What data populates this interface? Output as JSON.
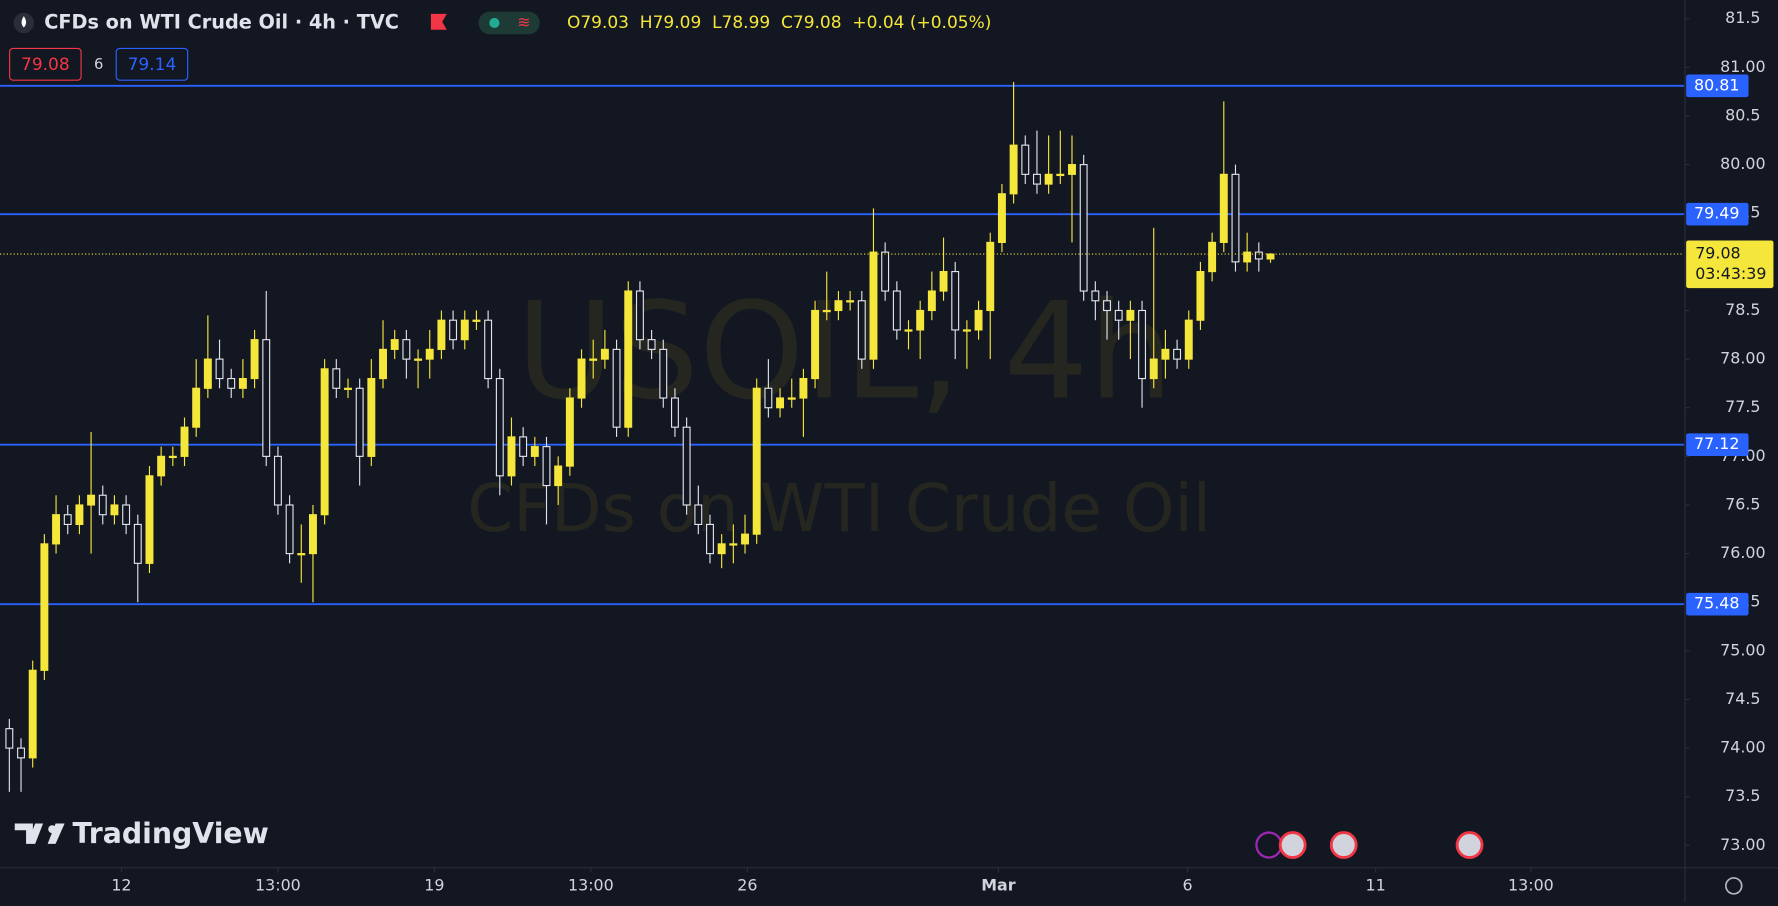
{
  "header": {
    "title": "CFDs on WTI Crude Oil · 4h · TVC",
    "ohlc_text": "O79.03  H79.09  L78.99  C79.08  +0.04 (+0.05%)",
    "sell": "79.08",
    "spread": "6",
    "buy": "79.14",
    "watermark_symbol": "USOIL, 4h",
    "watermark_name": "CFDs on WTI Crude Oil",
    "logo": "TradingView"
  },
  "chart_data": {
    "type": "candlestick",
    "up_color": "#f5e63b",
    "down_color": "#e0e3eb",
    "line_color": "#2962ff",
    "x": [
      0,
      1,
      2,
      3,
      4,
      5,
      6,
      7,
      8,
      9,
      10,
      11,
      12,
      13,
      14,
      15,
      16,
      17,
      18,
      19,
      20,
      21,
      22,
      23,
      24,
      25,
      26,
      27,
      28,
      29,
      30,
      31,
      32,
      33,
      34,
      35,
      36,
      37,
      38,
      39,
      40,
      41,
      42,
      43,
      44,
      45,
      46,
      47,
      48,
      49,
      50,
      51,
      52,
      53,
      54,
      55,
      56,
      57,
      58,
      59,
      60,
      61,
      62,
      63,
      64,
      65,
      66,
      67,
      68,
      69,
      70,
      71,
      72,
      73,
      74,
      75,
      76,
      77,
      78,
      79,
      80,
      81,
      82,
      83,
      84,
      85,
      86,
      87,
      88,
      89,
      90,
      91,
      92,
      93,
      94,
      95,
      96,
      97,
      98,
      99,
      100,
      101,
      102,
      103,
      104,
      105,
      106,
      107,
      108
    ],
    "open": [
      74.2,
      74.0,
      73.9,
      74.8,
      76.1,
      76.4,
      76.3,
      76.5,
      76.6,
      76.4,
      76.5,
      76.3,
      75.9,
      76.8,
      77.0,
      77.0,
      77.3,
      77.7,
      78.0,
      77.8,
      77.7,
      77.8,
      78.2,
      77.0,
      76.5,
      76.0,
      76.0,
      76.4,
      77.9,
      77.7,
      77.7,
      77.0,
      77.8,
      78.1,
      78.2,
      78.0,
      78.0,
      78.1,
      78.4,
      78.2,
      78.4,
      78.4,
      77.8,
      76.8,
      77.2,
      77.0,
      77.1,
      76.7,
      76.9,
      77.6,
      78.0,
      78.0,
      78.1,
      77.3,
      78.7,
      78.2,
      78.1,
      77.6,
      77.3,
      76.5,
      76.3,
      76.0,
      76.1,
      76.1,
      76.2,
      77.7,
      77.5,
      77.6,
      77.6,
      77.8,
      78.5,
      78.5,
      78.6,
      78.6,
      78.0,
      79.1,
      78.7,
      78.3,
      78.3,
      78.5,
      78.7,
      78.9,
      78.3,
      78.3,
      78.5,
      79.2,
      79.7,
      80.2,
      79.9,
      79.8,
      79.9,
      79.9,
      80.0,
      78.7,
      78.6,
      78.5,
      78.4,
      78.5,
      77.8,
      78.0,
      78.1,
      78.0,
      78.4,
      78.9,
      79.2,
      79.9,
      79.0,
      79.1,
      79.03
    ],
    "high": [
      74.3,
      74.1,
      74.9,
      76.2,
      76.6,
      76.5,
      76.6,
      77.25,
      76.7,
      76.6,
      76.6,
      76.4,
      76.9,
      77.1,
      77.1,
      77.4,
      78.0,
      78.45,
      78.2,
      77.9,
      78.0,
      78.3,
      78.7,
      77.1,
      76.6,
      76.3,
      76.5,
      78.0,
      78.0,
      77.8,
      77.8,
      78.0,
      78.4,
      78.3,
      78.3,
      78.1,
      78.3,
      78.5,
      78.5,
      78.5,
      78.5,
      78.5,
      77.9,
      77.4,
      77.3,
      77.2,
      77.2,
      77.0,
      77.7,
      78.1,
      78.2,
      78.3,
      78.2,
      78.8,
      78.8,
      78.3,
      78.2,
      77.7,
      77.4,
      76.7,
      76.4,
      76.2,
      76.3,
      76.4,
      77.8,
      78.0,
      77.7,
      77.8,
      77.9,
      78.6,
      78.9,
      78.7,
      78.7,
      78.7,
      79.55,
      79.2,
      78.8,
      78.4,
      78.6,
      78.9,
      79.25,
      79.0,
      78.4,
      78.6,
      79.3,
      79.8,
      80.85,
      80.3,
      80.35,
      80.3,
      80.35,
      80.3,
      80.1,
      78.8,
      78.7,
      78.6,
      78.6,
      78.6,
      79.35,
      78.3,
      78.2,
      78.5,
      79.0,
      79.3,
      80.65,
      80.0,
      79.3,
      79.2,
      79.09
    ],
    "low": [
      73.55,
      73.55,
      73.8,
      74.7,
      76.0,
      76.2,
      76.2,
      76.0,
      76.3,
      76.3,
      76.2,
      75.5,
      75.8,
      76.7,
      76.9,
      76.9,
      77.2,
      77.6,
      77.7,
      77.6,
      77.6,
      77.7,
      76.9,
      76.4,
      75.9,
      75.7,
      75.5,
      76.3,
      77.6,
      77.6,
      76.7,
      76.9,
      77.7,
      78.0,
      77.8,
      77.7,
      77.8,
      78.0,
      78.1,
      78.1,
      78.3,
      77.7,
      76.6,
      76.7,
      76.9,
      76.9,
      76.3,
      76.5,
      76.8,
      77.5,
      77.8,
      77.9,
      77.2,
      77.2,
      78.1,
      78.0,
      77.5,
      77.2,
      76.4,
      76.2,
      75.9,
      75.85,
      75.9,
      76.0,
      76.1,
      77.4,
      77.4,
      77.5,
      77.2,
      77.7,
      78.4,
      78.4,
      78.5,
      77.9,
      77.9,
      78.6,
      78.2,
      78.1,
      78.0,
      78.4,
      78.6,
      78.0,
      77.9,
      78.2,
      78.0,
      79.1,
      79.6,
      79.8,
      79.7,
      79.7,
      79.8,
      79.2,
      78.6,
      78.4,
      78.2,
      78.2,
      78.0,
      77.5,
      77.7,
      77.8,
      77.9,
      77.9,
      78.3,
      78.8,
      79.1,
      78.9,
      78.9,
      78.9,
      78.99
    ],
    "close": [
      74.0,
      73.9,
      74.8,
      76.1,
      76.4,
      76.3,
      76.5,
      76.6,
      76.4,
      76.5,
      76.3,
      75.9,
      76.8,
      77.0,
      77.0,
      77.3,
      77.7,
      78.0,
      77.8,
      77.7,
      77.8,
      78.2,
      77.0,
      76.5,
      76.0,
      76.0,
      76.4,
      77.9,
      77.7,
      77.7,
      77.0,
      77.8,
      78.1,
      78.2,
      78.0,
      78.0,
      78.1,
      78.4,
      78.2,
      78.4,
      78.4,
      77.8,
      76.8,
      77.2,
      77.0,
      77.1,
      76.7,
      76.9,
      77.6,
      78.0,
      78.0,
      78.1,
      77.3,
      78.7,
      78.2,
      78.1,
      77.6,
      77.3,
      76.5,
      76.3,
      76.0,
      76.1,
      76.1,
      76.2,
      77.7,
      77.5,
      77.6,
      77.6,
      77.8,
      78.5,
      78.5,
      78.6,
      78.6,
      78.0,
      79.1,
      78.7,
      78.3,
      78.3,
      78.5,
      78.7,
      78.9,
      78.3,
      78.3,
      78.5,
      79.2,
      79.7,
      80.2,
      79.9,
      79.8,
      79.9,
      79.9,
      80.0,
      78.7,
      78.6,
      78.5,
      78.4,
      78.5,
      77.8,
      78.0,
      78.1,
      78.0,
      78.4,
      78.9,
      79.2,
      79.9,
      79.0,
      79.1,
      79.03,
      79.08
    ],
    "xlim": [
      -0.8,
      143.4
    ],
    "xticks": [
      {
        "value": 9.6,
        "label": "12"
      },
      {
        "value": 23.0,
        "label": "13:00"
      },
      {
        "value": 36.4,
        "label": "19"
      },
      {
        "value": 49.8,
        "label": "13:00"
      },
      {
        "value": 63.2,
        "label": "26"
      },
      {
        "value": 84.7,
        "label": "Mar"
      },
      {
        "value": 100.9,
        "label": "6"
      },
      {
        "value": 117.0,
        "label": "11"
      },
      {
        "value": 130.3,
        "label": "13:00"
      }
    ],
    "ylim": [
      72.77,
      81.69
    ],
    "yticks": [
      {
        "value": 73,
        "label": "73.00"
      },
      73.5,
      {
        "value": 74,
        "label": "74.00"
      },
      74.5,
      {
        "value": 75,
        "label": "75.00"
      },
      75.5,
      {
        "value": 76,
        "label": "76.00"
      },
      76.5,
      {
        "value": 77,
        "label": "77.00"
      },
      77.5,
      {
        "value": 78,
        "label": "78.00"
      },
      78.5,
      {
        "value": 79,
        "label": "79.00"
      },
      79.5,
      {
        "value": 80,
        "label": "80.00"
      },
      80.5,
      {
        "value": 81,
        "label": "81.00"
      },
      81.5
    ],
    "hlines": [
      80.81,
      79.49,
      77.12,
      75.48
    ],
    "last_price": 79.08,
    "countdown": "03:43:39"
  }
}
